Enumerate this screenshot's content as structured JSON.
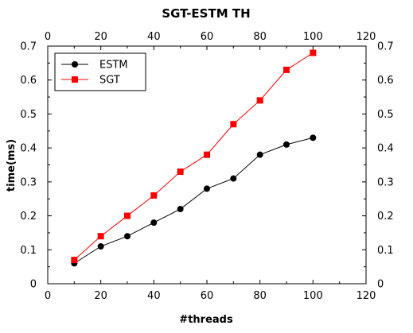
{
  "chart_data": {
    "type": "line",
    "title": "SGT-ESTM TH",
    "xlabel": "#threads",
    "ylabel": "time(ms)",
    "xlim": [
      0,
      120
    ],
    "ylim": [
      0,
      0.7
    ],
    "xticks": [
      "0",
      "20",
      "40",
      "60",
      "80",
      "100",
      "120"
    ],
    "yticks": [
      "0",
      "0.1",
      "0.2",
      "0.3",
      "0.4",
      "0.5",
      "0.6",
      "0.7"
    ],
    "legend_position": "top-left",
    "grid": false,
    "series": [
      {
        "name": "ESTM",
        "color": "#000000",
        "marker": "circle",
        "x": [
          10,
          20,
          30,
          40,
          50,
          60,
          70,
          80,
          90,
          100
        ],
        "y": [
          0.06,
          0.11,
          0.14,
          0.18,
          0.22,
          0.28,
          0.31,
          0.38,
          0.41,
          0.43
        ]
      },
      {
        "name": "SGT",
        "color": "#ff0000",
        "marker": "square",
        "x": [
          10,
          20,
          30,
          40,
          50,
          60,
          70,
          80,
          90,
          100
        ],
        "y": [
          0.07,
          0.14,
          0.2,
          0.26,
          0.33,
          0.38,
          0.47,
          0.54,
          0.63,
          0.68
        ]
      }
    ]
  }
}
